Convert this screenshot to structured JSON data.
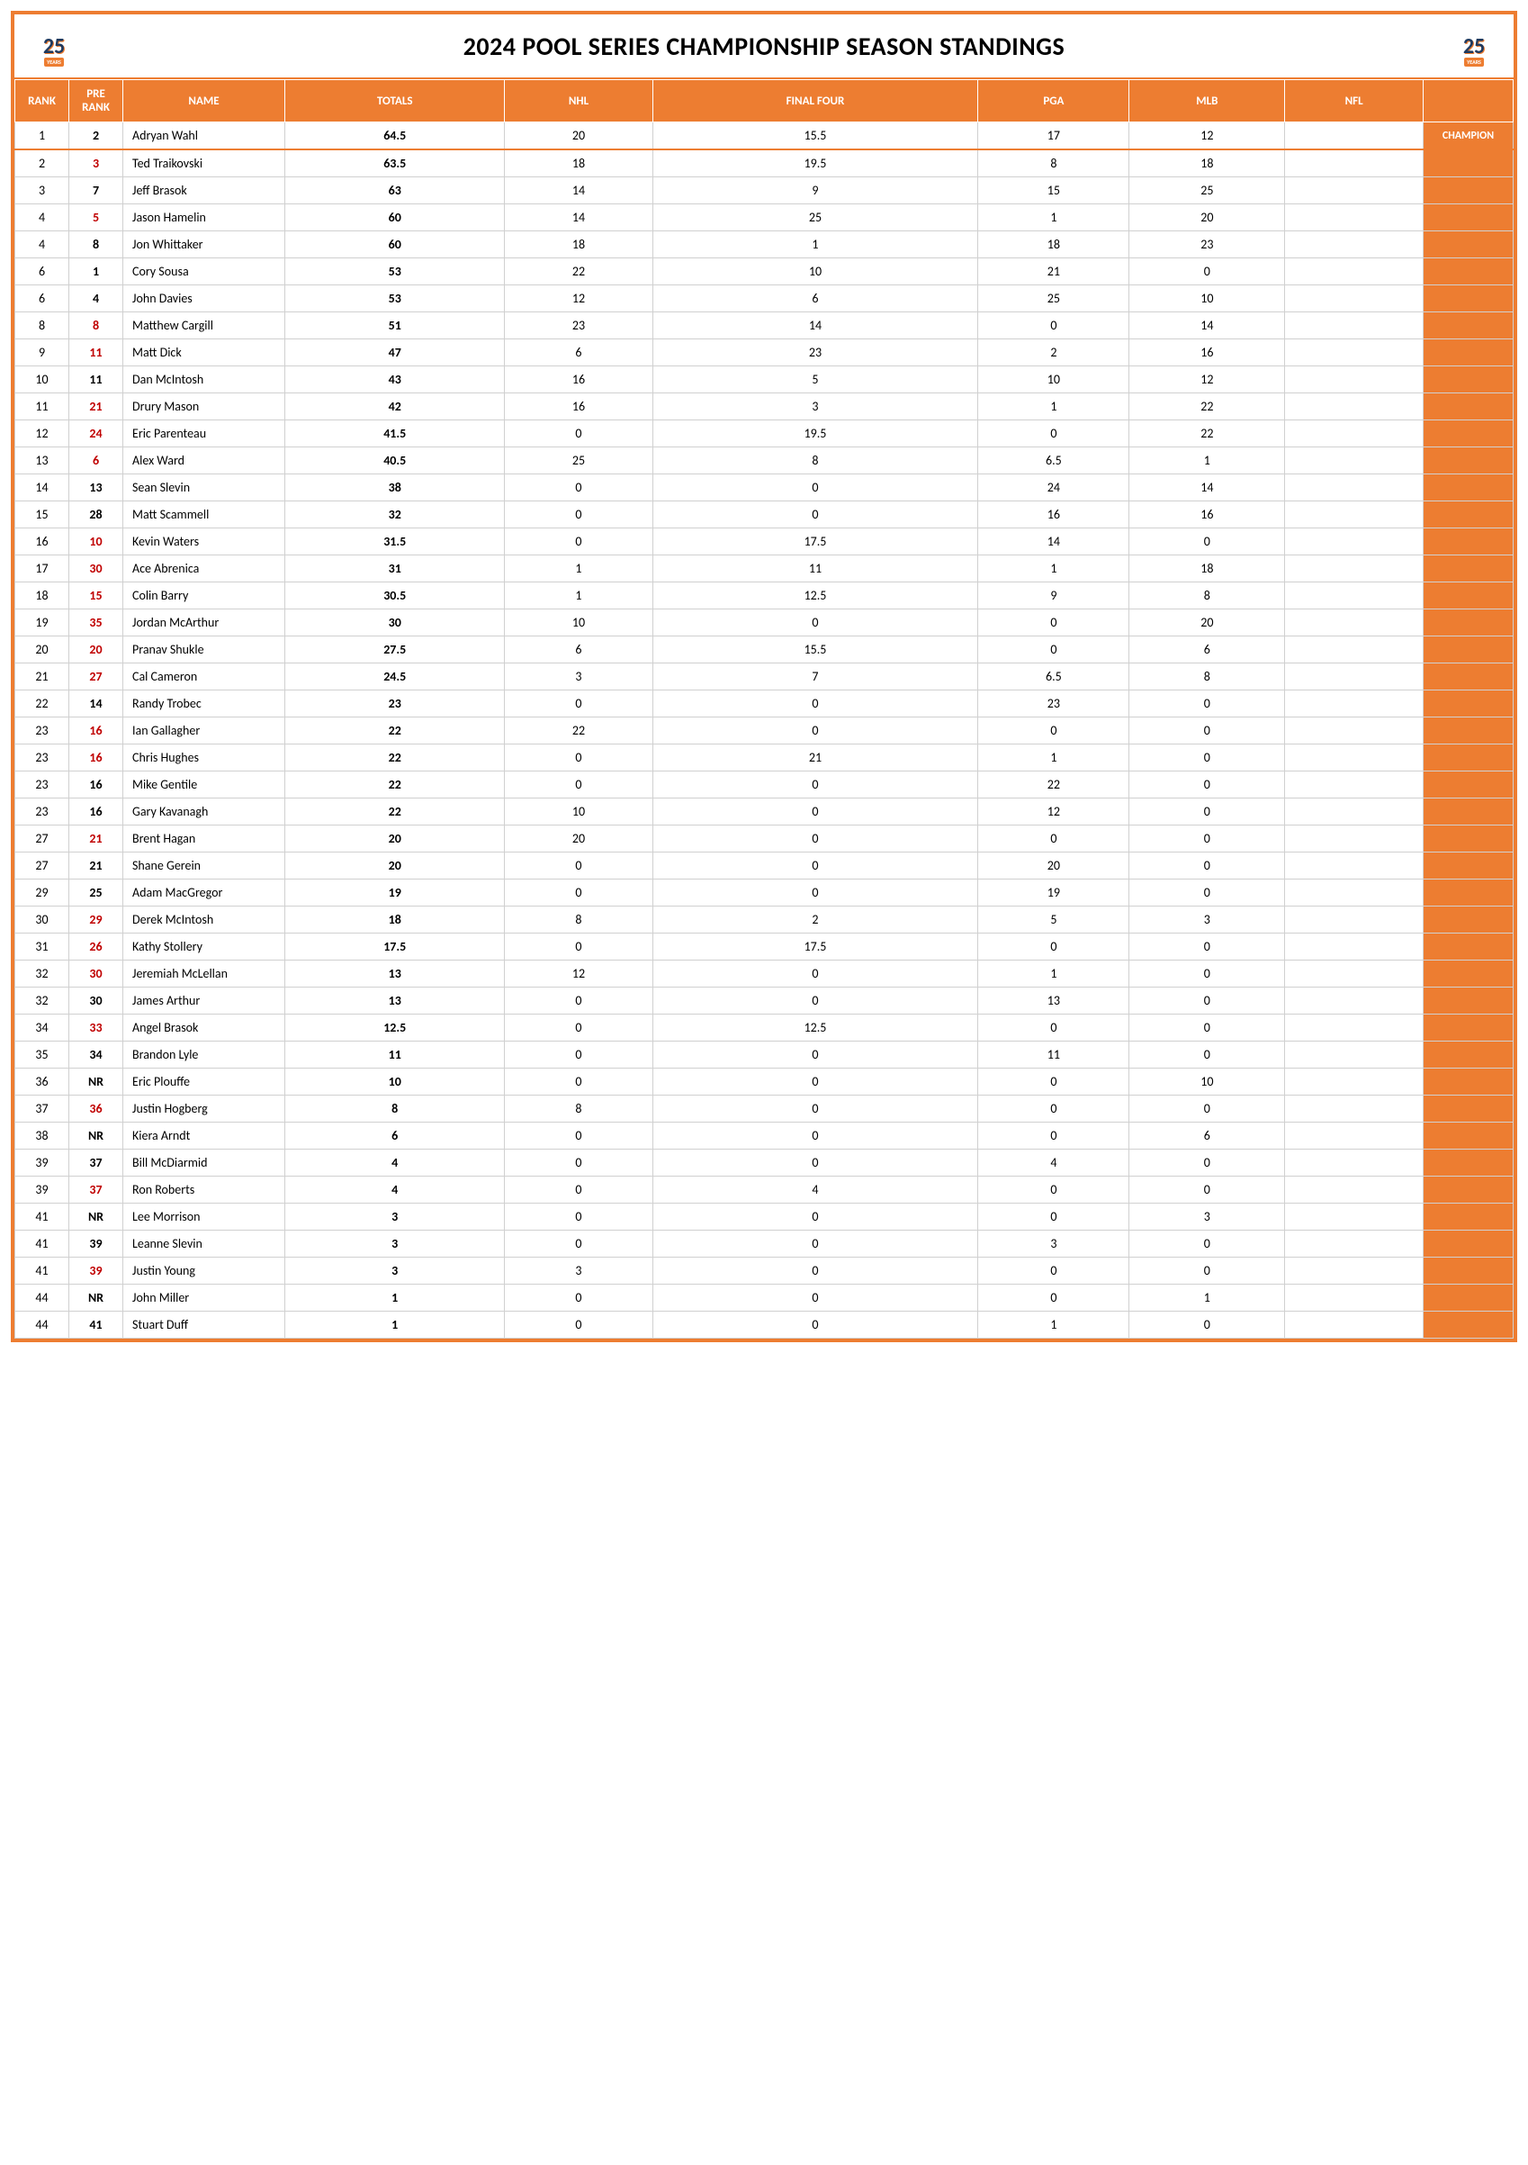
{
  "title": "2024 POOL SERIES CHAMPIONSHIP SEASON STANDINGS",
  "logo_label": "25",
  "logo_sub": "YEARS",
  "champion_label": "CHAMPION",
  "colors": {
    "accent": "#ed7d31",
    "header_text": "#ffffff",
    "prerank_red": "#c00000",
    "border": "#d0d0d0"
  },
  "columns": [
    "RANK",
    "PRE RANK",
    "NAME",
    "TOTALS",
    "NHL",
    "FINAL FOUR",
    "PGA",
    "MLB",
    "NFL",
    ""
  ],
  "rows": [
    {
      "rank": "1",
      "pre": "2",
      "pre_red": false,
      "name": "Adryan Wahl",
      "totals": "64.5",
      "nhl": "20",
      "ff": "15.5",
      "pga": "17",
      "mlb": "12",
      "nfl": "",
      "champion": true
    },
    {
      "rank": "2",
      "pre": "3",
      "pre_red": true,
      "name": "Ted Traikovski",
      "totals": "63.5",
      "nhl": "18",
      "ff": "19.5",
      "pga": "8",
      "mlb": "18",
      "nfl": ""
    },
    {
      "rank": "3",
      "pre": "7",
      "pre_red": false,
      "name": "Jeff Brasok",
      "totals": "63",
      "nhl": "14",
      "ff": "9",
      "pga": "15",
      "mlb": "25",
      "nfl": ""
    },
    {
      "rank": "4",
      "pre": "5",
      "pre_red": true,
      "name": "Jason Hamelin",
      "totals": "60",
      "nhl": "14",
      "ff": "25",
      "pga": "1",
      "mlb": "20",
      "nfl": ""
    },
    {
      "rank": "4",
      "pre": "8",
      "pre_red": false,
      "name": "Jon Whittaker",
      "totals": "60",
      "nhl": "18",
      "ff": "1",
      "pga": "18",
      "mlb": "23",
      "nfl": ""
    },
    {
      "rank": "6",
      "pre": "1",
      "pre_red": false,
      "name": "Cory Sousa",
      "totals": "53",
      "nhl": "22",
      "ff": "10",
      "pga": "21",
      "mlb": "0",
      "nfl": ""
    },
    {
      "rank": "6",
      "pre": "4",
      "pre_red": false,
      "name": "John Davies",
      "totals": "53",
      "nhl": "12",
      "ff": "6",
      "pga": "25",
      "mlb": "10",
      "nfl": ""
    },
    {
      "rank": "8",
      "pre": "8",
      "pre_red": true,
      "name": "Matthew Cargill",
      "totals": "51",
      "nhl": "23",
      "ff": "14",
      "pga": "0",
      "mlb": "14",
      "nfl": ""
    },
    {
      "rank": "9",
      "pre": "11",
      "pre_red": true,
      "name": "Matt Dick",
      "totals": "47",
      "nhl": "6",
      "ff": "23",
      "pga": "2",
      "mlb": "16",
      "nfl": ""
    },
    {
      "rank": "10",
      "pre": "11",
      "pre_red": false,
      "name": "Dan McIntosh",
      "totals": "43",
      "nhl": "16",
      "ff": "5",
      "pga": "10",
      "mlb": "12",
      "nfl": ""
    },
    {
      "rank": "11",
      "pre": "21",
      "pre_red": true,
      "name": "Drury Mason",
      "totals": "42",
      "nhl": "16",
      "ff": "3",
      "pga": "1",
      "mlb": "22",
      "nfl": ""
    },
    {
      "rank": "12",
      "pre": "24",
      "pre_red": true,
      "name": "Eric Parenteau",
      "totals": "41.5",
      "nhl": "0",
      "ff": "19.5",
      "pga": "0",
      "mlb": "22",
      "nfl": ""
    },
    {
      "rank": "13",
      "pre": "6",
      "pre_red": true,
      "name": "Alex Ward",
      "totals": "40.5",
      "nhl": "25",
      "ff": "8",
      "pga": "6.5",
      "mlb": "1",
      "nfl": ""
    },
    {
      "rank": "14",
      "pre": "13",
      "pre_red": false,
      "name": "Sean Slevin",
      "totals": "38",
      "nhl": "0",
      "ff": "0",
      "pga": "24",
      "mlb": "14",
      "nfl": ""
    },
    {
      "rank": "15",
      "pre": "28",
      "pre_red": false,
      "name": "Matt Scammell",
      "totals": "32",
      "nhl": "0",
      "ff": "0",
      "pga": "16",
      "mlb": "16",
      "nfl": ""
    },
    {
      "rank": "16",
      "pre": "10",
      "pre_red": true,
      "name": "Kevin Waters",
      "totals": "31.5",
      "nhl": "0",
      "ff": "17.5",
      "pga": "14",
      "mlb": "0",
      "nfl": ""
    },
    {
      "rank": "17",
      "pre": "30",
      "pre_red": true,
      "name": "Ace Abrenica",
      "totals": "31",
      "nhl": "1",
      "ff": "11",
      "pga": "1",
      "mlb": "18",
      "nfl": ""
    },
    {
      "rank": "18",
      "pre": "15",
      "pre_red": true,
      "name": "Colin Barry",
      "totals": "30.5",
      "nhl": "1",
      "ff": "12.5",
      "pga": "9",
      "mlb": "8",
      "nfl": ""
    },
    {
      "rank": "19",
      "pre": "35",
      "pre_red": true,
      "name": "Jordan McArthur",
      "totals": "30",
      "nhl": "10",
      "ff": "0",
      "pga": "0",
      "mlb": "20",
      "nfl": ""
    },
    {
      "rank": "20",
      "pre": "20",
      "pre_red": true,
      "name": "Pranav Shukle",
      "totals": "27.5",
      "nhl": "6",
      "ff": "15.5",
      "pga": "0",
      "mlb": "6",
      "nfl": ""
    },
    {
      "rank": "21",
      "pre": "27",
      "pre_red": true,
      "name": "Cal Cameron",
      "totals": "24.5",
      "nhl": "3",
      "ff": "7",
      "pga": "6.5",
      "mlb": "8",
      "nfl": ""
    },
    {
      "rank": "22",
      "pre": "14",
      "pre_red": false,
      "name": "Randy Trobec",
      "totals": "23",
      "nhl": "0",
      "ff": "0",
      "pga": "23",
      "mlb": "0",
      "nfl": ""
    },
    {
      "rank": "23",
      "pre": "16",
      "pre_red": true,
      "name": "Ian Gallagher",
      "totals": "22",
      "nhl": "22",
      "ff": "0",
      "pga": "0",
      "mlb": "0",
      "nfl": ""
    },
    {
      "rank": "23",
      "pre": "16",
      "pre_red": true,
      "name": "Chris Hughes",
      "totals": "22",
      "nhl": "0",
      "ff": "21",
      "pga": "1",
      "mlb": "0",
      "nfl": ""
    },
    {
      "rank": "23",
      "pre": "16",
      "pre_red": false,
      "name": "Mike Gentile",
      "totals": "22",
      "nhl": "0",
      "ff": "0",
      "pga": "22",
      "mlb": "0",
      "nfl": ""
    },
    {
      "rank": "23",
      "pre": "16",
      "pre_red": false,
      "name": "Gary Kavanagh",
      "totals": "22",
      "nhl": "10",
      "ff": "0",
      "pga": "12",
      "mlb": "0",
      "nfl": ""
    },
    {
      "rank": "27",
      "pre": "21",
      "pre_red": true,
      "name": "Brent Hagan",
      "totals": "20",
      "nhl": "20",
      "ff": "0",
      "pga": "0",
      "mlb": "0",
      "nfl": ""
    },
    {
      "rank": "27",
      "pre": "21",
      "pre_red": false,
      "name": "Shane Gerein",
      "totals": "20",
      "nhl": "0",
      "ff": "0",
      "pga": "20",
      "mlb": "0",
      "nfl": ""
    },
    {
      "rank": "29",
      "pre": "25",
      "pre_red": false,
      "name": "Adam MacGregor",
      "totals": "19",
      "nhl": "0",
      "ff": "0",
      "pga": "19",
      "mlb": "0",
      "nfl": ""
    },
    {
      "rank": "30",
      "pre": "29",
      "pre_red": true,
      "name": "Derek McIntosh",
      "totals": "18",
      "nhl": "8",
      "ff": "2",
      "pga": "5",
      "mlb": "3",
      "nfl": ""
    },
    {
      "rank": "31",
      "pre": "26",
      "pre_red": true,
      "name": "Kathy Stollery",
      "totals": "17.5",
      "nhl": "0",
      "ff": "17.5",
      "pga": "0",
      "mlb": "0",
      "nfl": ""
    },
    {
      "rank": "32",
      "pre": "30",
      "pre_red": true,
      "name": "Jeremiah McLellan",
      "totals": "13",
      "nhl": "12",
      "ff": "0",
      "pga": "1",
      "mlb": "0",
      "nfl": ""
    },
    {
      "rank": "32",
      "pre": "30",
      "pre_red": false,
      "name": "James Arthur",
      "totals": "13",
      "nhl": "0",
      "ff": "0",
      "pga": "13",
      "mlb": "0",
      "nfl": ""
    },
    {
      "rank": "34",
      "pre": "33",
      "pre_red": true,
      "name": "Angel Brasok",
      "totals": "12.5",
      "nhl": "0",
      "ff": "12.5",
      "pga": "0",
      "mlb": "0",
      "nfl": ""
    },
    {
      "rank": "35",
      "pre": "34",
      "pre_red": false,
      "name": "Brandon Lyle",
      "totals": "11",
      "nhl": "0",
      "ff": "0",
      "pga": "11",
      "mlb": "0",
      "nfl": ""
    },
    {
      "rank": "36",
      "pre": "NR",
      "pre_red": false,
      "name": "Eric Plouffe",
      "totals": "10",
      "nhl": "0",
      "ff": "0",
      "pga": "0",
      "mlb": "10",
      "nfl": ""
    },
    {
      "rank": "37",
      "pre": "36",
      "pre_red": true,
      "name": "Justin Hogberg",
      "totals": "8",
      "nhl": "8",
      "ff": "0",
      "pga": "0",
      "mlb": "0",
      "nfl": ""
    },
    {
      "rank": "38",
      "pre": "NR",
      "pre_red": false,
      "name": "Kiera Arndt",
      "totals": "6",
      "nhl": "0",
      "ff": "0",
      "pga": "0",
      "mlb": "6",
      "nfl": ""
    },
    {
      "rank": "39",
      "pre": "37",
      "pre_red": false,
      "name": "Bill McDiarmid",
      "totals": "4",
      "nhl": "0",
      "ff": "0",
      "pga": "4",
      "mlb": "0",
      "nfl": ""
    },
    {
      "rank": "39",
      "pre": "37",
      "pre_red": true,
      "name": "Ron Roberts",
      "totals": "4",
      "nhl": "0",
      "ff": "4",
      "pga": "0",
      "mlb": "0",
      "nfl": ""
    },
    {
      "rank": "41",
      "pre": "NR",
      "pre_red": false,
      "name": "Lee Morrison",
      "totals": "3",
      "nhl": "0",
      "ff": "0",
      "pga": "0",
      "mlb": "3",
      "nfl": ""
    },
    {
      "rank": "41",
      "pre": "39",
      "pre_red": false,
      "name": "Leanne Slevin",
      "totals": "3",
      "nhl": "0",
      "ff": "0",
      "pga": "3",
      "mlb": "0",
      "nfl": ""
    },
    {
      "rank": "41",
      "pre": "39",
      "pre_red": true,
      "name": "Justin Young",
      "totals": "3",
      "nhl": "3",
      "ff": "0",
      "pga": "0",
      "mlb": "0",
      "nfl": ""
    },
    {
      "rank": "44",
      "pre": "NR",
      "pre_red": false,
      "name": "John Miller",
      "totals": "1",
      "nhl": "0",
      "ff": "0",
      "pga": "0",
      "mlb": "1",
      "nfl": ""
    },
    {
      "rank": "44",
      "pre": "41",
      "pre_red": false,
      "name": "Stuart Duff",
      "totals": "1",
      "nhl": "0",
      "ff": "0",
      "pga": "1",
      "mlb": "0",
      "nfl": ""
    }
  ]
}
